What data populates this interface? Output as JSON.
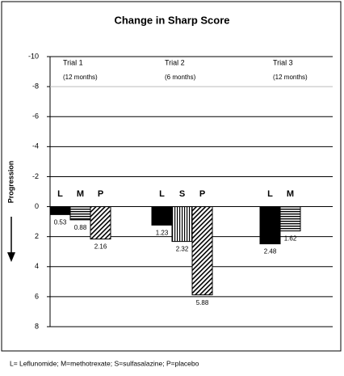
{
  "chart_data": {
    "type": "grouped-bar",
    "title": "Change in Sharp Score",
    "y_label": "Progression",
    "ylim": [
      -10,
      8
    ],
    "inverted": true,
    "yticks": [
      -10,
      -8,
      -6,
      -4,
      -2,
      0,
      2,
      4,
      6,
      8
    ],
    "grid": true,
    "groups": [
      {
        "name": "Trial 1",
        "subtitle": "(12 months)",
        "bars": [
          {
            "label": "L",
            "value": 0.53,
            "pattern": "solid"
          },
          {
            "label": "M",
            "value": 0.88,
            "pattern": "horizontal"
          },
          {
            "label": "P",
            "value": 2.16,
            "pattern": "diagonal"
          }
        ]
      },
      {
        "name": "Trial 2",
        "subtitle": "(6 months)",
        "bars": [
          {
            "label": "L",
            "value": 1.23,
            "pattern": "solid"
          },
          {
            "label": "S",
            "value": 2.32,
            "pattern": "vertical"
          },
          {
            "label": "P",
            "value": 5.88,
            "pattern": "diagonal"
          }
        ]
      },
      {
        "name": "Trial 3",
        "subtitle": "(12 months)",
        "bars": [
          {
            "label": "L",
            "value": 2.48,
            "pattern": "solid"
          },
          {
            "label": "M",
            "value": 1.62,
            "pattern": "horizontal"
          }
        ]
      }
    ],
    "footnote": "L= Leflunomide; M=methotrexate; S=sulfasalazine; P=placebo"
  }
}
